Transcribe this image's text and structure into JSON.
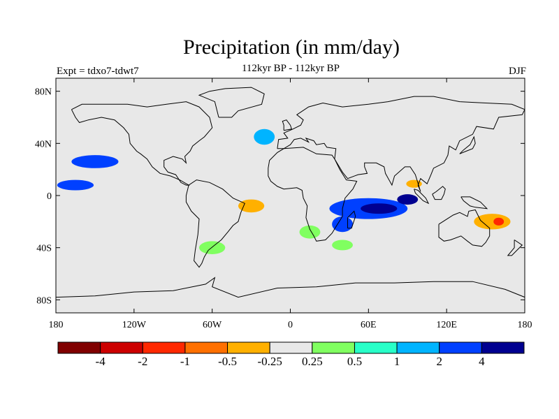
{
  "title": "Precipitation (in mm/day)",
  "subtitle": "112kyr BP - 112kyr BP",
  "left_label": "Expt = tdxo7-tdwt7",
  "right_label": "DJF",
  "colors": {
    "background": "#e8e8e8",
    "coastline": "#000000"
  },
  "map": {
    "lat_ticks": [
      {
        "value": 80,
        "label": "80N"
      },
      {
        "value": 40,
        "label": "40N"
      },
      {
        "value": 0,
        "label": "0"
      },
      {
        "value": -40,
        "label": "40S"
      },
      {
        "value": -80,
        "label": "80S"
      }
    ],
    "lon_ticks": [
      {
        "value": -180,
        "label": "180"
      },
      {
        "value": -120,
        "label": "120W"
      },
      {
        "value": -60,
        "label": "60W"
      },
      {
        "value": 0,
        "label": "0"
      },
      {
        "value": 60,
        "label": "60E"
      },
      {
        "value": 120,
        "label": "120E"
      },
      {
        "value": 180,
        "label": "180"
      }
    ],
    "anomaly_blobs": [
      {
        "lon": 148,
        "lat": -18,
        "rx": 20,
        "ry": 9,
        "level": 0
      },
      {
        "lon": 155,
        "lat": -20,
        "rx": 14,
        "ry": 6,
        "level": -1
      },
      {
        "lon": 160,
        "lat": -20,
        "rx": 4,
        "ry": 3,
        "level": -3
      },
      {
        "lon": 95,
        "lat": 8,
        "rx": 10,
        "ry": 6,
        "level": 0
      },
      {
        "lon": 95,
        "lat": 9,
        "rx": 6,
        "ry": 3,
        "level": -1
      },
      {
        "lon": 125,
        "lat": -8,
        "rx": 14,
        "ry": 6,
        "level": 0
      },
      {
        "lon": 60,
        "lat": -10,
        "rx": 30,
        "ry": 8,
        "level": 4
      },
      {
        "lon": 68,
        "lat": -10,
        "rx": 14,
        "ry": 4,
        "level": 5
      },
      {
        "lon": 90,
        "lat": -3,
        "rx": 8,
        "ry": 4,
        "level": 5
      },
      {
        "lon": 40,
        "lat": -22,
        "rx": 8,
        "ry": 6,
        "level": 4
      },
      {
        "lon": -35,
        "lat": -8,
        "rx": 25,
        "ry": 10,
        "level": 0
      },
      {
        "lon": -30,
        "lat": -8,
        "rx": 10,
        "ry": 5,
        "level": -1
      },
      {
        "lon": -145,
        "lat": -10,
        "rx": 30,
        "ry": 10,
        "level": 0
      },
      {
        "lon": -160,
        "lat": -15,
        "rx": 12,
        "ry": 6,
        "level": 0
      },
      {
        "lon": -130,
        "lat": 10,
        "rx": 10,
        "ry": 3,
        "level": 0
      },
      {
        "lon": -165,
        "lat": 8,
        "rx": 14,
        "ry": 4,
        "level": 4
      },
      {
        "lon": -150,
        "lat": 26,
        "rx": 18,
        "ry": 5,
        "level": 4
      },
      {
        "lon": -55,
        "lat": 38,
        "rx": 12,
        "ry": 6,
        "level": 0
      },
      {
        "lon": -60,
        "lat": -40,
        "rx": 10,
        "ry": 5,
        "level": 1
      },
      {
        "lon": -20,
        "lat": 45,
        "rx": 8,
        "ry": 6,
        "level": 3
      },
      {
        "lon": 15,
        "lat": -28,
        "rx": 8,
        "ry": 5,
        "level": 1
      },
      {
        "lon": 40,
        "lat": -38,
        "rx": 8,
        "ry": 4,
        "level": 1
      }
    ]
  },
  "colorbar": {
    "colors": [
      "#800000",
      "#cc0000",
      "#ff2800",
      "#ff7000",
      "#ffb000",
      "#e8e8e8",
      "#80ff60",
      "#28ffc8",
      "#00b4ff",
      "#0040ff",
      "#000090"
    ],
    "labels": [
      "-4",
      "-2",
      "-1",
      "-0.5",
      "-0.25",
      "0.25",
      "0.5",
      "1",
      "2",
      "4"
    ]
  }
}
